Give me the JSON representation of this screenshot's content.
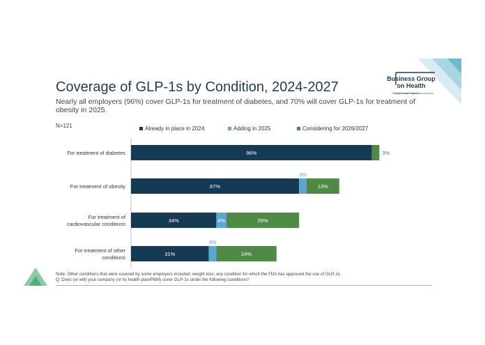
{
  "header": {
    "title": "Coverage of GLP-1s by Condition, 2024-2027",
    "subtitle": "Nearly all employers (96%) cover GLP-1s for treatment of diabetes, and 70% will cover GLP-1s for treatment of obesity in 2025.",
    "n": "N=121"
  },
  "logo": {
    "line1": "Business Group",
    "line2": "on Health",
    "tagline": "Driving Change Together"
  },
  "footer": {
    "note": "Note: Other conditions that were covered by some employers included: weight loss; any condition for which the FDA has approved the use of GLP-1s.",
    "question": "Q: Does (or will) your company (or its health plan/PBM) cover GLP-1s under the following conditions?"
  },
  "colors": {
    "already": "#163a53",
    "adding": "#5aa7d6",
    "considering": "#4f8a45",
    "accent_green": "#8dc9a6"
  },
  "chart_data": {
    "type": "bar",
    "orientation": "horizontal",
    "stacked": true,
    "categories": [
      "For treatment of diabetes",
      "For treatment of obesity",
      "For treatment of cardiovascular conditions",
      "For treatment of other conditions"
    ],
    "series": [
      {
        "name": "Already in place in 2024",
        "values": [
          96,
          67,
          34,
          31
        ]
      },
      {
        "name": "Adding in 2025",
        "values": [
          0,
          3,
          4,
          3
        ]
      },
      {
        "name": "Considering for 2026/2027",
        "values": [
          3,
          13,
          29,
          24
        ]
      }
    ],
    "labels": [
      [
        "96%",
        "",
        "3%"
      ],
      [
        "67%",
        "3%",
        "13%"
      ],
      [
        "34%",
        "4%",
        "29%"
      ],
      [
        "31%",
        "3%",
        "24%"
      ]
    ],
    "xlim": [
      0,
      100
    ],
    "legend_position": "top",
    "grid": false
  }
}
